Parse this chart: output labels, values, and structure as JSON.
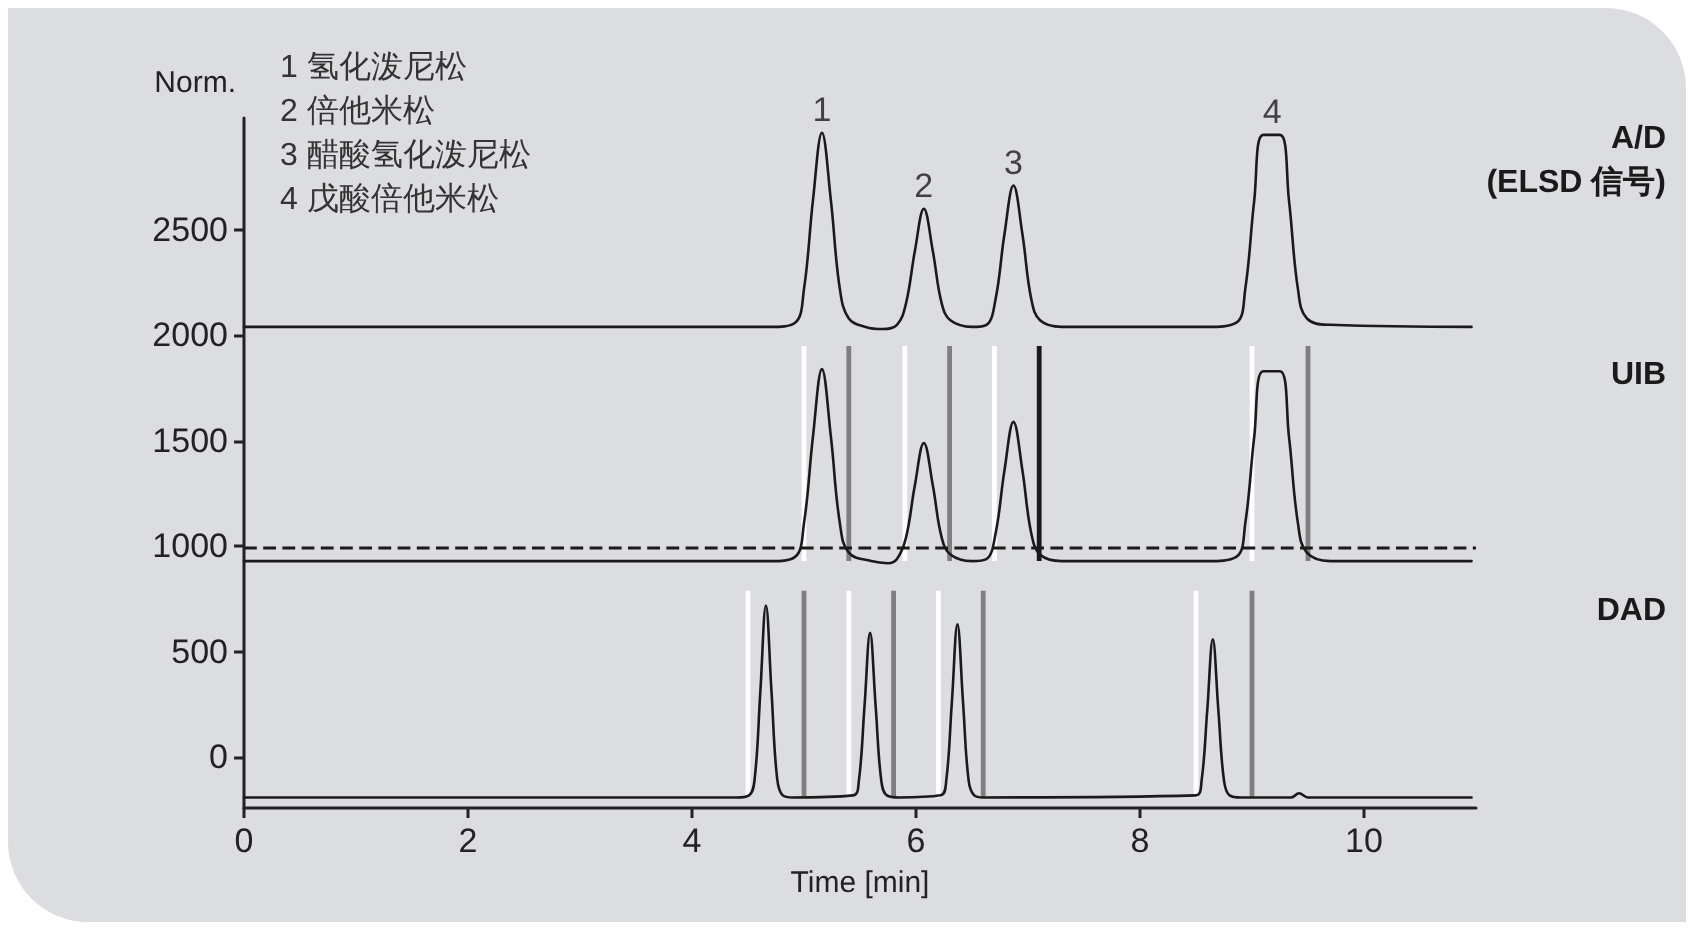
{
  "chart_data": {
    "type": "line",
    "xlabel": "Time [min]",
    "ylabel": "Norm.",
    "xlim": [
      0,
      11
    ],
    "xticks": [
      0,
      2,
      4,
      6,
      8,
      10
    ],
    "ylim": [
      -240,
      3030
    ],
    "yticks": [
      0,
      500,
      1000,
      1500,
      2000,
      2500
    ],
    "legend": false,
    "grid": false,
    "marker": "none",
    "line_style": "solid",
    "series": [
      {
        "name": "A/D\n(ELSD 信号)",
        "color": "#1a1a1a",
        "x": [
          0,
          4.7,
          4.92,
          5.0,
          5.08,
          5.16,
          5.24,
          5.32,
          5.4,
          5.55,
          5.7,
          5.83,
          5.91,
          5.99,
          6.07,
          6.15,
          6.23,
          6.31,
          6.5,
          6.63,
          6.71,
          6.79,
          6.87,
          6.95,
          7.03,
          7.11,
          7.3,
          8.6,
          8.86,
          8.94,
          9.02,
          9.1,
          9.25,
          9.33,
          9.41,
          9.49,
          9.7,
          10.96
        ],
        "values": [
          2040,
          2040,
          2060,
          2220,
          2640,
          2960,
          2640,
          2220,
          2080,
          2040,
          2030,
          2050,
          2150,
          2400,
          2600,
          2400,
          2150,
          2070,
          2040,
          2050,
          2170,
          2480,
          2710,
          2480,
          2170,
          2070,
          2040,
          2040,
          2060,
          2220,
          2640,
          2950,
          2950,
          2640,
          2220,
          2080,
          2050,
          2040
        ]
      },
      {
        "name": "UIB",
        "color": "#1a1a1a",
        "x": [
          0,
          4.7,
          4.92,
          5.0,
          5.08,
          5.16,
          5.24,
          5.32,
          5.4,
          5.6,
          5.75,
          5.83,
          5.91,
          5.99,
          6.07,
          6.15,
          6.23,
          6.31,
          6.5,
          6.63,
          6.71,
          6.79,
          6.87,
          6.95,
          7.03,
          7.11,
          7.3,
          8.6,
          8.86,
          8.94,
          9.02,
          9.1,
          9.25,
          9.33,
          9.41,
          9.49,
          9.7,
          10.96
        ],
        "values": [
          930,
          930,
          950,
          1110,
          1520,
          1840,
          1520,
          1110,
          970,
          930,
          920,
          940,
          1040,
          1290,
          1490,
          1290,
          1040,
          960,
          930,
          940,
          1060,
          1360,
          1590,
          1360,
          1060,
          960,
          930,
          930,
          950,
          1110,
          1520,
          1830,
          1830,
          1520,
          1110,
          970,
          930,
          930
        ]
      },
      {
        "name": "DAD",
        "color": "#1a1a1a",
        "x": [
          0,
          4.4,
          4.51,
          4.56,
          4.61,
          4.66,
          4.71,
          4.76,
          4.81,
          4.9,
          5.44,
          5.49,
          5.54,
          5.59,
          5.64,
          5.69,
          5.74,
          5.85,
          6.22,
          6.27,
          6.32,
          6.37,
          6.42,
          6.47,
          6.52,
          6.6,
          8.5,
          8.55,
          8.6,
          8.65,
          8.7,
          8.75,
          8.8,
          8.9,
          9.35,
          9.42,
          9.5,
          10.96
        ],
        "values": [
          -190,
          -190,
          -180,
          -100,
          310,
          720,
          310,
          -100,
          -180,
          -190,
          -180,
          -110,
          240,
          590,
          240,
          -110,
          -180,
          -190,
          -180,
          -110,
          260,
          630,
          260,
          -110,
          -180,
          -190,
          -180,
          -110,
          220,
          560,
          220,
          -110,
          -180,
          -190,
          -190,
          -170,
          -190,
          -190
        ]
      },
      {
        "type": "bar",
        "color": "#ffffff",
        "x": [
          4.5,
          5.0,
          5.4,
          5.9,
          6.2,
          6.7,
          8.5,
          9.0
        ],
        "base": [
          -190,
          930,
          -190,
          930,
          -190,
          930,
          -190,
          930
        ],
        "values": [
          980,
          1020,
          980,
          1020,
          980,
          1020,
          980,
          1020
        ]
      },
      {
        "type": "bar",
        "color": "#7f7f7f",
        "x": [
          5.0,
          5.4,
          5.8,
          6.3,
          6.6,
          9.0,
          9.5
        ],
        "base": [
          -190,
          930,
          -190,
          930,
          -190,
          -190,
          930
        ],
        "values": [
          980,
          1020,
          980,
          1020,
          980,
          980,
          1020
        ]
      },
      {
        "type": "bar",
        "color": "#1a1a1a",
        "x": [
          7.1
        ],
        "base": [
          930
        ],
        "values": [
          1020
        ]
      }
    ],
    "ref_lines": [
      {
        "axis": "y",
        "value": 990,
        "color": "#1a1a1a",
        "line_style": "dashed"
      }
    ],
    "annotations": [
      "1 氢化泼尼松",
      "2 倍他米松",
      "3 醋酸氢化泼尼松",
      "4 戊酸倍他米松",
      {
        "text": "1",
        "x": 5.16,
        "y": 2960
      },
      {
        "text": "2",
        "x": 6.07,
        "y": 2600
      },
      {
        "text": "3",
        "x": 6.87,
        "y": 2710
      },
      {
        "text": "4",
        "x": 9.18,
        "y": 2950
      }
    ]
  }
}
